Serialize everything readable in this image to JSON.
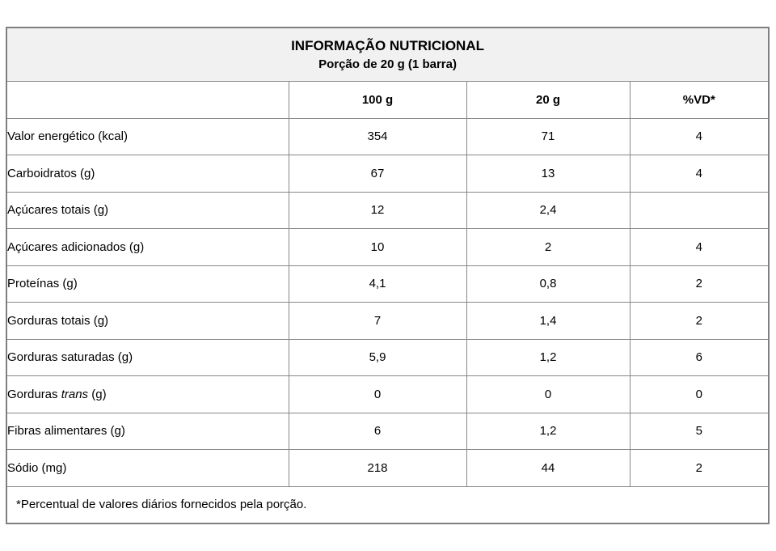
{
  "table": {
    "title": "INFORMAÇÃO NUTRICIONAL",
    "subtitle": "Porção de 20 g (1 barra)",
    "columns": [
      "",
      "100 g",
      "20 g",
      "%VD*"
    ],
    "rows": [
      {
        "indent": 0,
        "label_prefix": "Valor energético (kcal)",
        "label_italic": "",
        "label_suffix": "",
        "v100": "354",
        "v20": "71",
        "vd": "4"
      },
      {
        "indent": 0,
        "label_prefix": "Carboidratos (g)",
        "label_italic": "",
        "label_suffix": "",
        "v100": "67",
        "v20": "13",
        "vd": "4"
      },
      {
        "indent": 1,
        "label_prefix": "Açúcares totais (g)",
        "label_italic": "",
        "label_suffix": "",
        "v100": "12",
        "v20": "2,4",
        "vd": ""
      },
      {
        "indent": 2,
        "label_prefix": "Açúcares adicionados (g)",
        "label_italic": "",
        "label_suffix": "",
        "v100": "10",
        "v20": "2",
        "vd": "4"
      },
      {
        "indent": 0,
        "label_prefix": "Proteínas (g)",
        "label_italic": "",
        "label_suffix": "",
        "v100": "4,1",
        "v20": "0,8",
        "vd": "2"
      },
      {
        "indent": 0,
        "label_prefix": "Gorduras totais (g)",
        "label_italic": "",
        "label_suffix": "",
        "v100": "7",
        "v20": "1,4",
        "vd": "2"
      },
      {
        "indent": 1,
        "label_prefix": "Gorduras saturadas (g)",
        "label_italic": "",
        "label_suffix": "",
        "v100": "5,9",
        "v20": "1,2",
        "vd": "6"
      },
      {
        "indent": 1,
        "label_prefix": "Gorduras ",
        "label_italic": "trans",
        "label_suffix": " (g)",
        "v100": "0",
        "v20": "0",
        "vd": "0"
      },
      {
        "indent": 0,
        "label_prefix": "Fibras alimentares (g)",
        "label_italic": "",
        "label_suffix": "",
        "v100": "6",
        "v20": "1,2",
        "vd": "5"
      },
      {
        "indent": 0,
        "label_prefix": "Sódio (mg)",
        "label_italic": "",
        "label_suffix": "",
        "v100": "218",
        "v20": "44",
        "vd": "2"
      }
    ],
    "footnote": "*Percentual de valores diários fornecidos pela porção."
  },
  "colors": {
    "header_background": "#f1f1f1",
    "border": "#878787",
    "text": "#000000",
    "page_background": "#ffffff"
  }
}
